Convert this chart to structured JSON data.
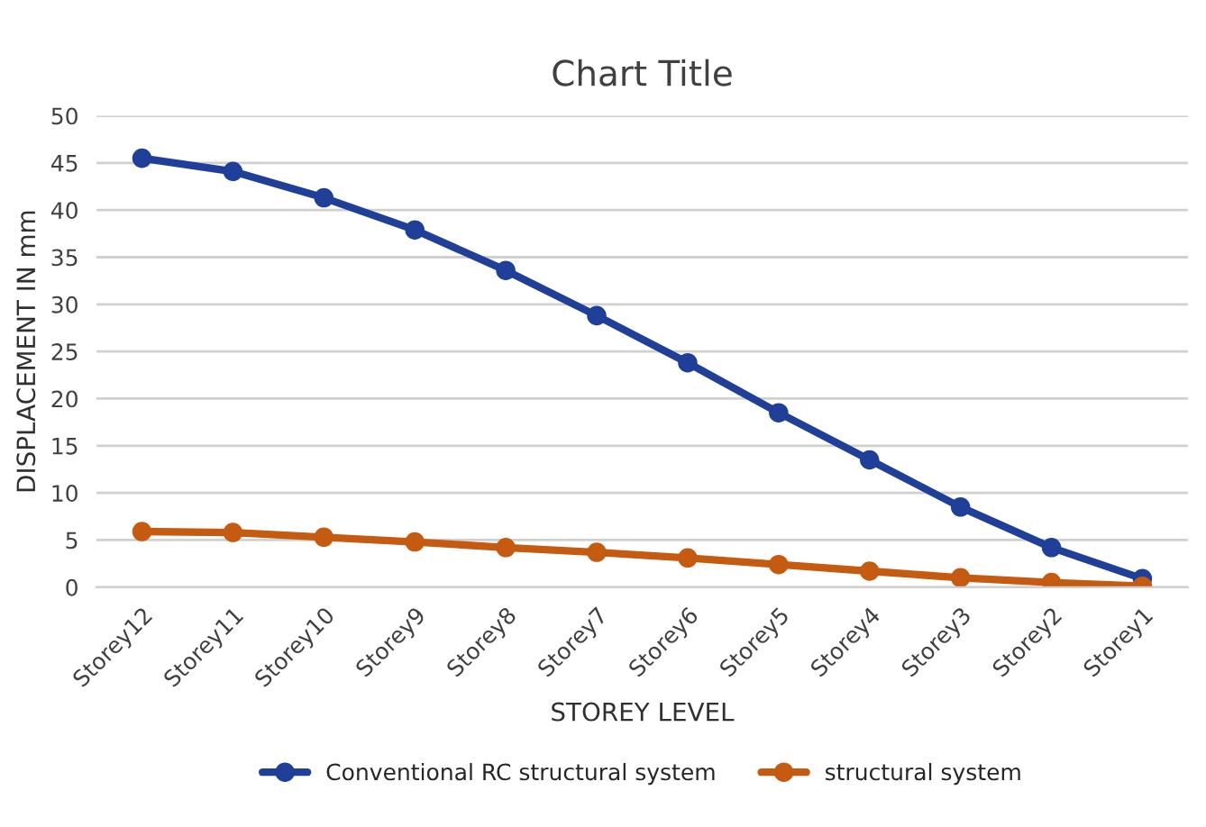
{
  "chart_data": {
    "type": "line",
    "title": "Chart Title",
    "xlabel": "STOREY LEVEL",
    "ylabel": "DISPLACEMENT IN mm",
    "categories": [
      "Storey12",
      "Storey11",
      "Storey10",
      "Storey9",
      "Storey8",
      "Storey7",
      "Storey6",
      "Storey5",
      "Storey4",
      "Storey3",
      "Storey2",
      "Storey1"
    ],
    "series": [
      {
        "name": "Conventional RC structural system",
        "color": "#1f3f99",
        "values": [
          45.5,
          44.1,
          41.3,
          37.9,
          33.6,
          28.8,
          23.8,
          18.5,
          13.5,
          8.5,
          4.2,
          0.9
        ]
      },
      {
        "name": "structural system",
        "color": "#c55a11",
        "values": [
          5.9,
          5.8,
          5.3,
          4.8,
          4.2,
          3.7,
          3.1,
          2.4,
          1.7,
          1.0,
          0.5,
          0.1
        ]
      }
    ],
    "ylim": [
      0,
      50
    ],
    "yticks": [
      0,
      5,
      10,
      15,
      20,
      25,
      30,
      35,
      40,
      45,
      50
    ],
    "grid": "y",
    "legend": "bottom",
    "marker": "circle",
    "line_style": "solid"
  }
}
